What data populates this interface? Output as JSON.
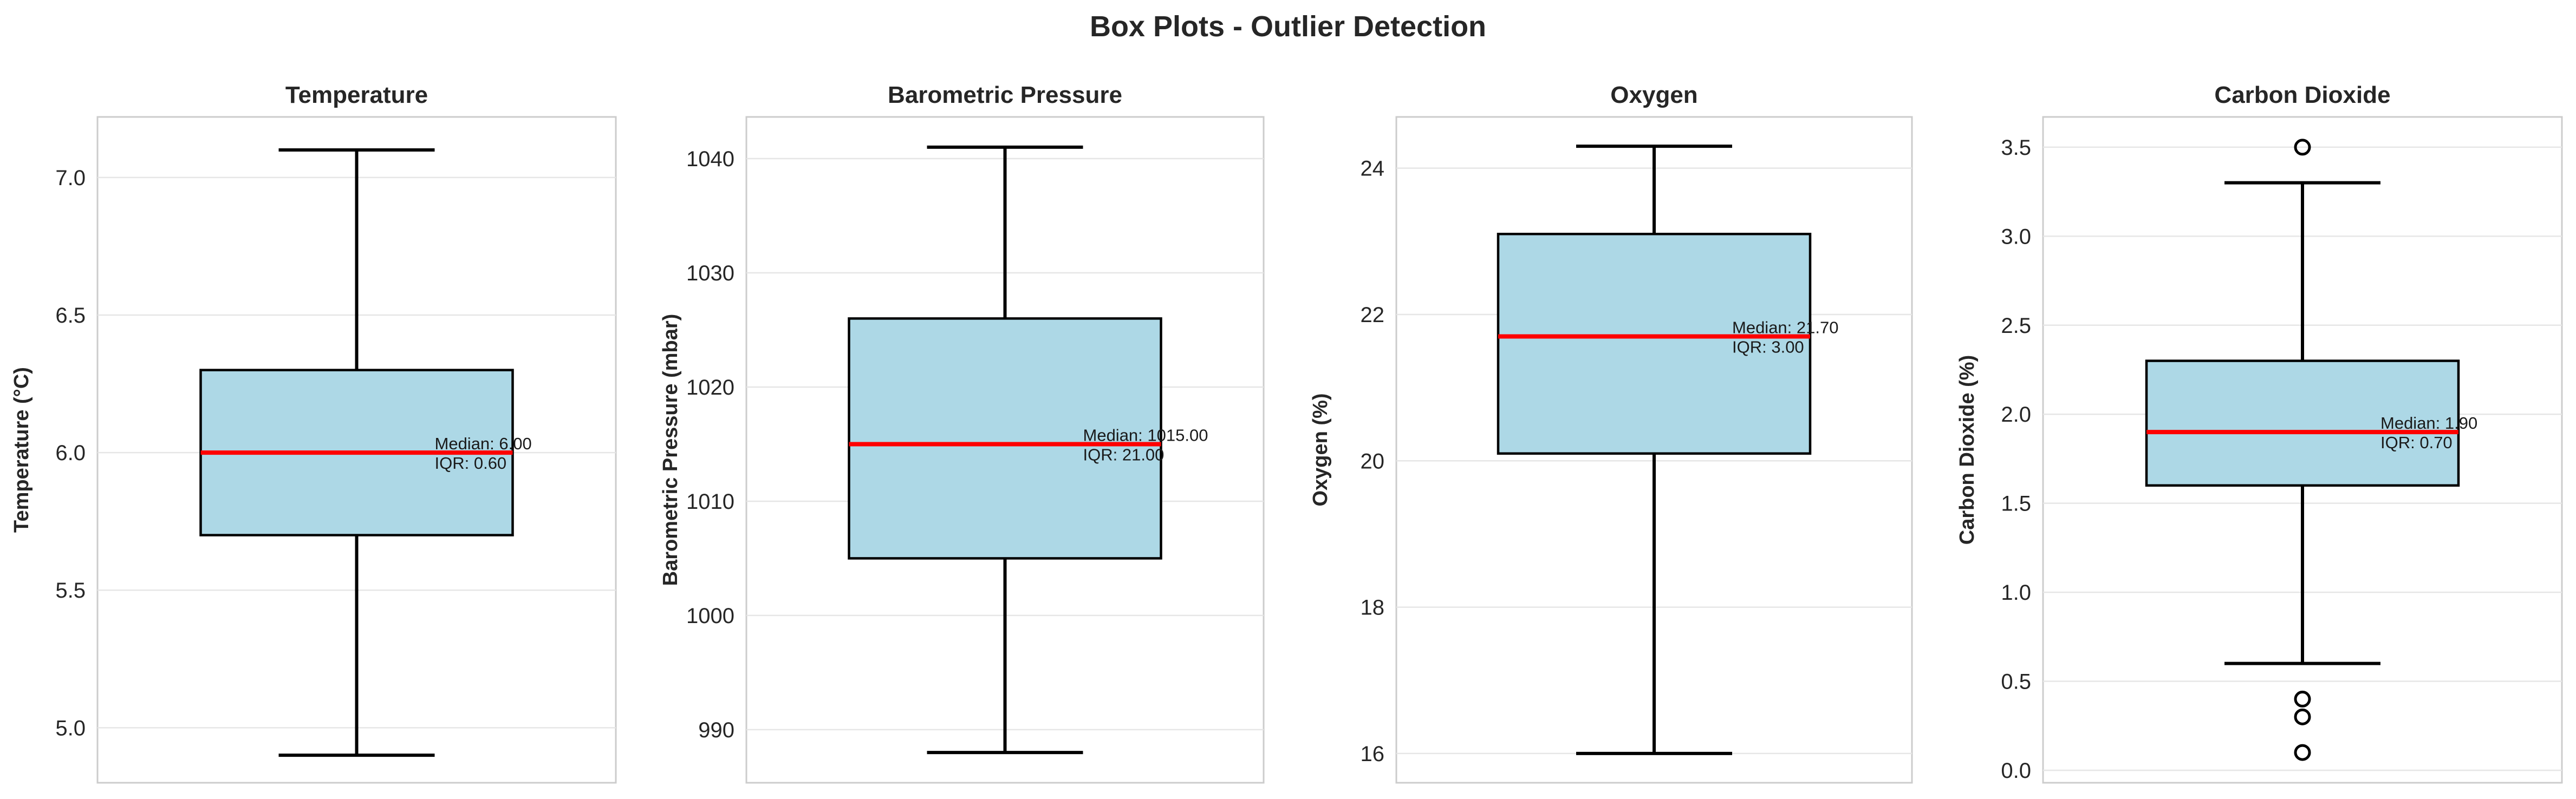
{
  "figure": {
    "title": "Box Plots - Outlier Detection"
  },
  "chart_data": [
    {
      "type": "box",
      "title": "Temperature",
      "ylabel": "Temperature (°C)",
      "ylim": [
        4.8,
        7.22
      ],
      "yticks": [
        5.0,
        5.5,
        6.0,
        6.5,
        7.0
      ],
      "ytick_labels": [
        "5.0",
        "5.5",
        "6.0",
        "6.5",
        "7.0"
      ],
      "grid": true,
      "whisker_low": 4.9,
      "q1": 5.7,
      "median": 6.0,
      "q3": 6.3,
      "whisker_high": 7.1,
      "outliers": [],
      "annotation": {
        "median": "Median: 6.00",
        "iqr": "IQR: 0.60"
      },
      "colors": {
        "box": "#add8e6",
        "median": "#ff0000"
      }
    },
    {
      "type": "box",
      "title": "Barometric Pressure",
      "ylabel": "Barometric Pressure (mbar)",
      "ylim": [
        985.35,
        1043.65
      ],
      "yticks": [
        990,
        1000,
        1010,
        1020,
        1030,
        1040
      ],
      "ytick_labels": [
        "990",
        "1000",
        "1010",
        "1020",
        "1030",
        "1040"
      ],
      "grid": true,
      "whisker_low": 988,
      "q1": 1005,
      "median": 1015,
      "q3": 1026,
      "whisker_high": 1041,
      "outliers": [],
      "annotation": {
        "median": "Median: 1015.00",
        "iqr": "IQR: 21.00"
      },
      "colors": {
        "box": "#add8e6",
        "median": "#ff0000"
      }
    },
    {
      "type": "box",
      "title": "Oxygen",
      "ylabel": "Oxygen (%)",
      "ylim": [
        15.6,
        24.7
      ],
      "yticks": [
        16,
        18,
        20,
        22,
        24
      ],
      "ytick_labels": [
        "16",
        "18",
        "20",
        "22",
        "24"
      ],
      "grid": true,
      "whisker_low": 16.0,
      "q1": 20.1,
      "median": 21.7,
      "q3": 23.1,
      "whisker_high": 24.3,
      "outliers": [],
      "annotation": {
        "median": "Median: 21.70",
        "iqr": "IQR: 3.00"
      },
      "colors": {
        "box": "#add8e6",
        "median": "#ff0000"
      }
    },
    {
      "type": "box",
      "title": "Carbon Dioxide",
      "ylabel": "Carbon Dioxide (%)",
      "ylim": [
        -0.07,
        3.67
      ],
      "yticks": [
        0.0,
        0.5,
        1.0,
        1.5,
        2.0,
        2.5,
        3.0,
        3.5
      ],
      "ytick_labels": [
        "0.0",
        "0.5",
        "1.0",
        "1.5",
        "2.0",
        "2.5",
        "3.0",
        "3.5"
      ],
      "grid": true,
      "whisker_low": 0.6,
      "q1": 1.6,
      "median": 1.9,
      "q3": 2.3,
      "whisker_high": 3.3,
      "outliers": [
        3.5,
        0.4,
        0.3,
        0.1
      ],
      "annotation": {
        "median": "Median: 1.90",
        "iqr": "IQR: 0.70"
      },
      "colors": {
        "box": "#add8e6",
        "median": "#ff0000"
      }
    }
  ]
}
